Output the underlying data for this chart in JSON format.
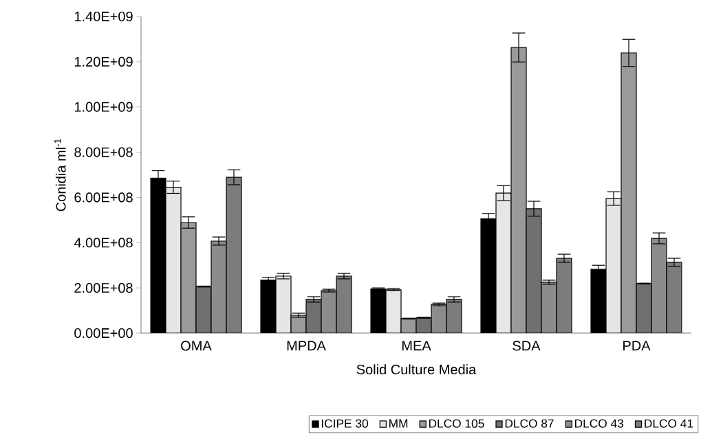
{
  "chart_data": {
    "type": "bar",
    "xlabel": "Solid Culture Media",
    "ylabel": "Conidia ml$^{-1}$",
    "categories": [
      "OMA",
      "MPDA",
      "MEA",
      "SDA",
      "PDA"
    ],
    "series": [
      {
        "name": "ICIPE 30",
        "color": "#000000",
        "values": [
          685000000,
          234000000,
          195000000,
          505000000,
          282000000
        ],
        "errors": [
          33000000,
          12000000,
          5000000,
          24000000,
          18000000
        ]
      },
      {
        "name": "MM",
        "color": "#e6e6e6",
        "values": [
          645000000,
          252000000,
          192000000,
          619000000,
          595000000
        ],
        "errors": [
          27000000,
          12000000,
          5000000,
          33000000,
          30000000
        ]
      },
      {
        "name": "DLCO 105",
        "color": "#9a9a9a",
        "values": [
          489000000,
          79000000,
          64000000,
          1263000000,
          1239000000
        ],
        "errors": [
          25000000,
          9000000,
          2000000,
          64000000,
          60000000
        ]
      },
      {
        "name": "DLCO 87",
        "color": "#707070",
        "values": [
          206000000,
          149000000,
          68000000,
          550000000,
          219000000
        ],
        "errors": [
          2000000,
          12000000,
          2000000,
          33000000,
          2000000
        ]
      },
      {
        "name": "DLCO 43",
        "color": "#8c8c8c",
        "values": [
          407000000,
          188000000,
          127000000,
          225000000,
          419000000
        ],
        "errors": [
          18000000,
          6000000,
          6000000,
          9000000,
          24000000
        ]
      },
      {
        "name": "DLCO 41",
        "color": "#7c7c7c",
        "values": [
          689000000,
          252000000,
          149000000,
          331000000,
          313000000
        ],
        "errors": [
          33000000,
          12000000,
          12000000,
          18000000,
          18000000
        ]
      }
    ],
    "ylim": [
      0,
      1400000000
    ],
    "yticks": [
      {
        "value": 0,
        "label": "0.00E+00"
      },
      {
        "value": 200000000,
        "label": "2.00E+08"
      },
      {
        "value": 400000000,
        "label": "4.00E+08"
      },
      {
        "value": 600000000,
        "label": "6.00E+08"
      },
      {
        "value": 800000000,
        "label": "8.00E+08"
      },
      {
        "value": 1000000000,
        "label": "1.00E+09"
      },
      {
        "value": 1200000000,
        "label": "1.20E+09"
      },
      {
        "value": 1400000000,
        "label": "1.40E+09"
      }
    ],
    "legend": "bottom",
    "grid": false
  }
}
